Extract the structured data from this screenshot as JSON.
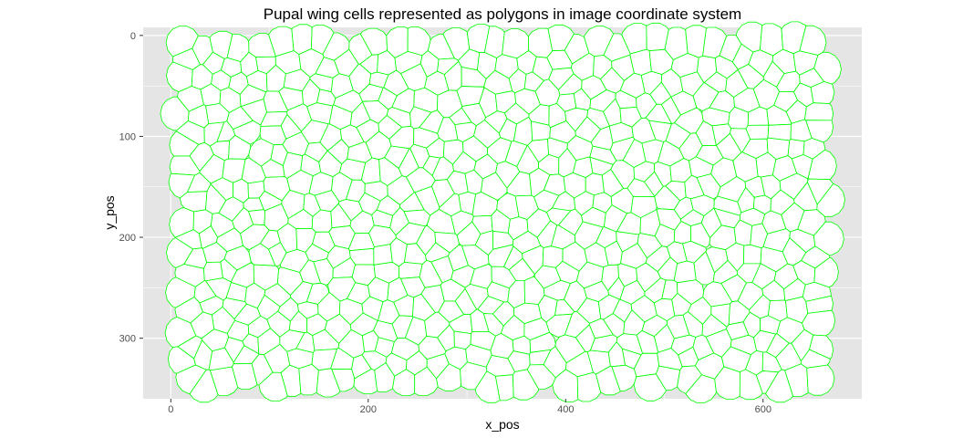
{
  "chart_data": {
    "type": "polygon-map",
    "title": "Pupal wing cells represented as polygons in image coordinate system",
    "xlabel": "x_pos",
    "ylabel": "y_pos",
    "xlim": [
      -28,
      700
    ],
    "ylim": [
      -8,
      360
    ],
    "y_reversed": true,
    "x_ticks": [
      0,
      200,
      400,
      600
    ],
    "y_ticks": [
      0,
      100,
      200,
      300
    ],
    "grid": true,
    "panel_background": "#e5e5e5",
    "grid_color": "#ffffff",
    "polygon_fill": "#ffffff",
    "polygon_outline": "#00ff00",
    "cell_region": {
      "x": [
        10,
        665
      ],
      "y": [
        10,
        345
      ]
    },
    "approx_cell_spacing": 20
  }
}
